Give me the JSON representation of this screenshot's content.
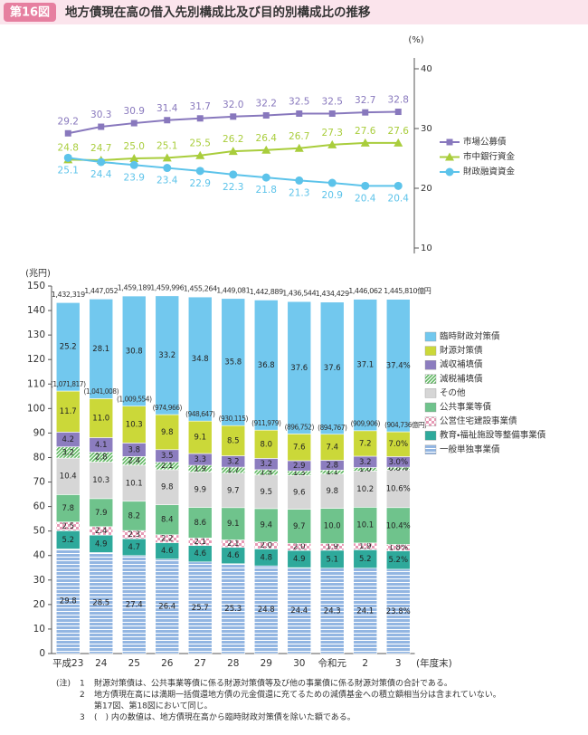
{
  "header": {
    "badge": "第16図",
    "title": "地方債現在高の借入先別構成比及び目的別構成比の推移"
  },
  "chart_data": [
    {
      "type": "line",
      "unit_label": "(%)",
      "axis_side": "right",
      "legend_position": "right",
      "ylim": [
        10,
        40
      ],
      "yticks": [
        10,
        20,
        30,
        40
      ],
      "grid": false,
      "series": [
        {
          "name": "市場公募債",
          "color": "#8878bd",
          "marker": "square",
          "label_side": "above",
          "values": [
            29.2,
            30.3,
            30.9,
            31.4,
            31.7,
            32.0,
            32.2,
            32.5,
            32.5,
            32.7,
            32.8
          ],
          "value_labels": [
            "29.2",
            "30.3",
            "30.9",
            "31.4",
            "31.7",
            "32.0",
            "32.2",
            "32.5",
            "32.5",
            "32.7",
            "32.8"
          ]
        },
        {
          "name": "市中銀行資金",
          "color": "#a9cd3c",
          "marker": "triangle",
          "label_side": "above",
          "values": [
            24.8,
            24.7,
            25.0,
            25.1,
            25.5,
            26.2,
            26.4,
            26.7,
            27.3,
            27.6,
            27.6
          ],
          "value_labels": [
            "24.8",
            "24.7",
            "25.0",
            "25.1",
            "25.5",
            "26.2",
            "26.4",
            "26.7",
            "27.3",
            "27.6",
            "27.6"
          ]
        },
        {
          "name": "財政融資資金",
          "color": "#5cc3ea",
          "marker": "circle",
          "label_side": "below",
          "values": [
            25.1,
            24.4,
            23.9,
            23.4,
            22.9,
            22.3,
            21.8,
            21.3,
            20.9,
            20.4,
            20.4
          ],
          "value_labels": [
            "25.1",
            "24.4",
            "23.9",
            "23.4",
            "22.9",
            "22.3",
            "21.8",
            "21.3",
            "20.9",
            "20.4",
            "20.4"
          ]
        }
      ]
    },
    {
      "type": "stacked_bar",
      "unit_label": "(兆円)",
      "x_unit_label": "(年度末)",
      "legend_position": "right",
      "grid": false,
      "categories": [
        "平成23",
        "24",
        "25",
        "26",
        "27",
        "28",
        "29",
        "30",
        "令和元",
        "2",
        "3"
      ],
      "ylim": [
        0,
        150
      ],
      "yticks": [
        0,
        10,
        20,
        30,
        40,
        50,
        60,
        70,
        80,
        90,
        100,
        110,
        120,
        130,
        140,
        150
      ],
      "totals": {
        "values": [
          143.2319,
          144.7052,
          145.9189,
          145.9996,
          145.5264,
          144.9081,
          144.2889,
          143.6544,
          143.4429,
          144.6062,
          144.581
        ],
        "value_labels": [
          "1,432,319",
          "1,447,052",
          "1,459,189",
          "1,459,996",
          "1,455,264",
          "1,449,081",
          "1,442,889",
          "1,436,544",
          "1,434,429",
          "1,446,062",
          "1,445,810億円"
        ]
      },
      "excluding_temporary": {
        "values": [
          107.1817,
          104.1008,
          100.9554,
          97.4966,
          94.8647,
          93.0115,
          91.1979,
          89.6752,
          89.4767,
          90.9906,
          90.4736
        ],
        "value_labels": [
          "(1,071,817)",
          "(1,041,008)",
          "(1,009,554)",
          "(974,966)",
          "(948,647)",
          "(930,115)",
          "(911,979)",
          "(896,752)",
          "(894,767)",
          "(909,906)",
          "(904,736億円)"
        ]
      },
      "series": [
        {
          "name": "一般単独事業債",
          "color": "#93b6e2",
          "pattern": "horizontal-lines",
          "values": [
            29.8,
            28.5,
            27.4,
            26.4,
            25.7,
            25.3,
            24.8,
            24.4,
            24.3,
            24.1,
            23.8
          ],
          "value_labels": [
            "29.8",
            "28.5",
            "27.4",
            "26.4",
            "25.7",
            "25.3",
            "24.8",
            "24.4",
            "24.3",
            "24.1",
            "23.8%"
          ]
        },
        {
          "name": "教育・福祉施設等整備事業債",
          "color": "#2ea99b",
          "values": [
            5.2,
            4.9,
            4.7,
            4.6,
            4.6,
            4.6,
            4.8,
            4.9,
            5.1,
            5.2,
            5.2
          ],
          "value_labels": [
            "5.2",
            "4.9",
            "4.7",
            "4.6",
            "4.6",
            "4.6",
            "4.8",
            "4.9",
            "5.1",
            "5.2",
            "5.2%"
          ]
        },
        {
          "name": "公営住宅建設事業債",
          "color": "#e79ab5",
          "pattern": "checker",
          "values": [
            2.5,
            2.4,
            2.3,
            2.2,
            2.1,
            2.1,
            2.0,
            2.0,
            1.9,
            1.9,
            1.8
          ],
          "value_labels": [
            "2.5",
            "2.4",
            "2.3",
            "2.2",
            "2.1",
            "2.1",
            "2.0",
            "2.0",
            "1.9",
            "1.9",
            "1.8%"
          ]
        },
        {
          "name": "公共事業等債",
          "color": "#6fc38c",
          "values": [
            7.8,
            7.9,
            8.2,
            8.4,
            8.6,
            9.1,
            9.4,
            9.7,
            10.0,
            10.1,
            10.4
          ],
          "value_labels": [
            "7.8",
            "7.9",
            "8.2",
            "8.4",
            "8.6",
            "9.1",
            "9.4",
            "9.7",
            "10.0",
            "10.1",
            "10.4%"
          ]
        },
        {
          "name": "その他",
          "color": "#d6d6d6",
          "values": [
            10.4,
            10.3,
            10.1,
            9.8,
            9.9,
            9.7,
            9.5,
            9.6,
            9.8,
            10.2,
            10.6
          ],
          "value_labels": [
            "10.4",
            "10.3",
            "10.1",
            "9.8",
            "9.9",
            "9.7",
            "9.5",
            "9.6",
            "9.8",
            "10.2",
            "10.6%"
          ]
        },
        {
          "name": "減税補填債",
          "color": "#5db65f",
          "pattern": "diagonal",
          "values": [
            3.2,
            2.8,
            2.4,
            2.1,
            1.9,
            1.7,
            1.5,
            1.3,
            1.1,
            1.0,
            0.8
          ],
          "value_labels": [
            "3.2",
            "2.8",
            "2.4",
            "2.1",
            "1.9",
            "1.7",
            "1.5",
            "1.3",
            "1.1",
            "1.0",
            "0.8%"
          ]
        },
        {
          "name": "減収補填債",
          "color": "#8c7dbf",
          "values": [
            4.2,
            4.1,
            3.8,
            3.5,
            3.3,
            3.2,
            3.2,
            2.9,
            2.8,
            3.2,
            3.0
          ],
          "value_labels": [
            "4.2",
            "4.1",
            "3.8",
            "3.5",
            "3.3",
            "3.2",
            "3.2",
            "2.9",
            "2.8",
            "3.2",
            "3.0%"
          ]
        },
        {
          "name": "財源対策債",
          "color": "#cbd839",
          "values": [
            11.7,
            11.0,
            10.3,
            9.8,
            9.1,
            8.5,
            8.0,
            7.6,
            7.4,
            7.2,
            7.0
          ],
          "value_labels": [
            "11.7",
            "11.0",
            "10.3",
            "9.8",
            "9.1",
            "8.5",
            "8.0",
            "7.6",
            "7.4",
            "7.2",
            "7.0%"
          ]
        },
        {
          "name": "臨時財政対策債",
          "color": "#72c8ee",
          "values": [
            25.2,
            28.1,
            30.8,
            33.2,
            34.8,
            35.8,
            36.8,
            37.6,
            37.6,
            37.1,
            37.4
          ],
          "value_labels": [
            "25.2",
            "28.1",
            "30.8",
            "33.2",
            "34.8",
            "35.8",
            "36.8",
            "37.6",
            "37.6",
            "37.1",
            "37.4%"
          ]
        }
      ]
    }
  ],
  "notes": {
    "marker": "(注)",
    "items": [
      {
        "number": "1",
        "lines": [
          "財源対策債は、公共事業等債に係る財源対策債等及び他の事業債に係る財源対策債の合計である。"
        ]
      },
      {
        "number": "2",
        "lines": [
          "地方債現在高には満期一括償還地方債の元金償還に充てるための減債基金への積立額相当分は含まれていない。",
          "第17図、第18図において同じ。"
        ]
      },
      {
        "number": "3",
        "lines": [
          "(　) 内の数値は、地方債現在高から臨時財政対策債を除いた額である。"
        ]
      }
    ]
  }
}
